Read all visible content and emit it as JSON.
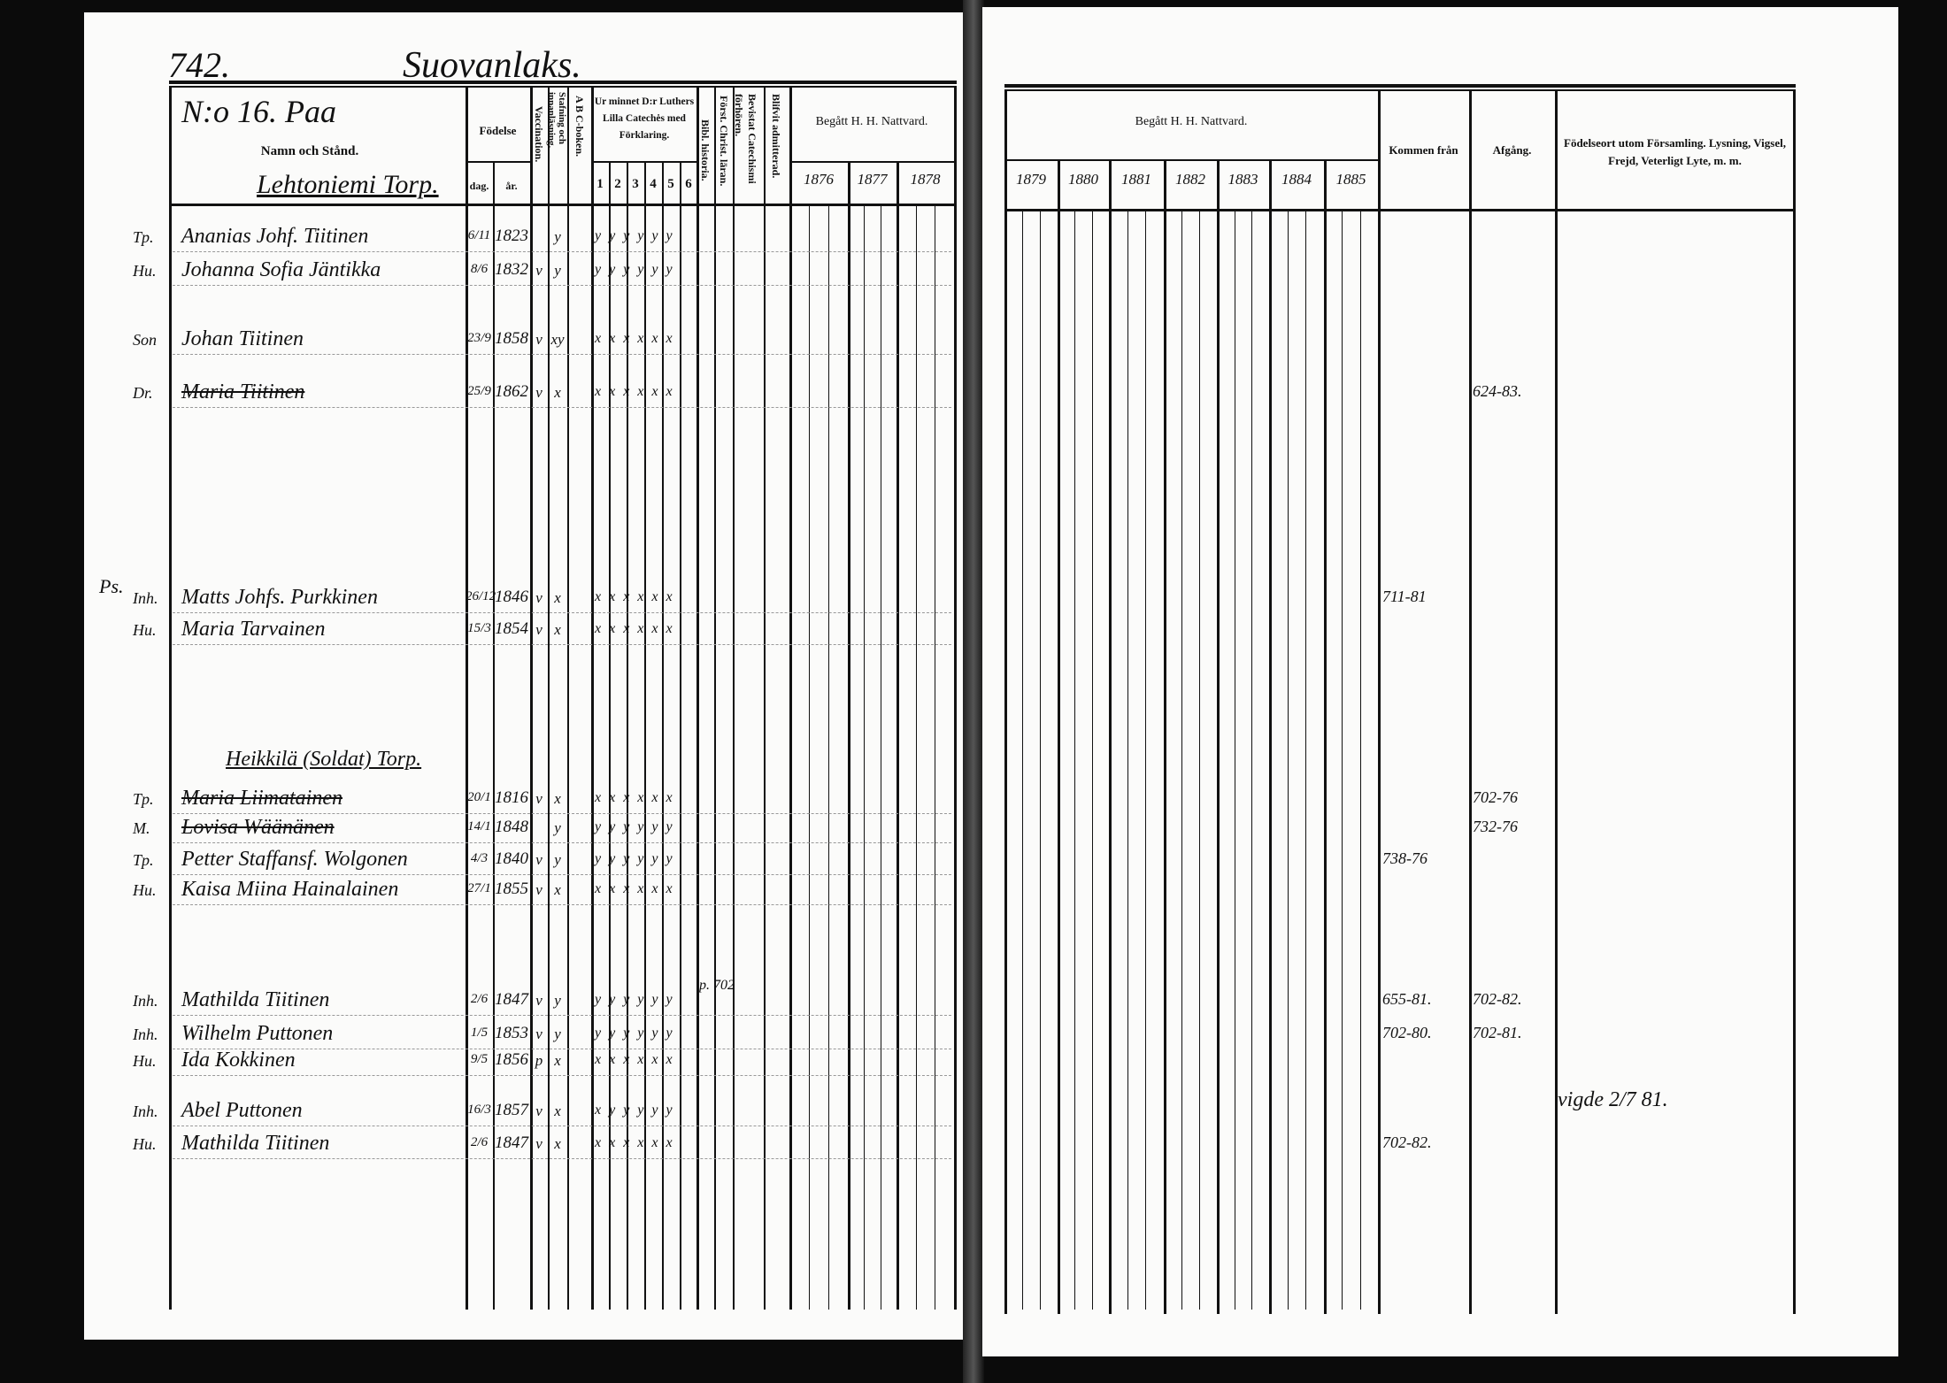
{
  "page_number": "742.",
  "village": "Suovanlaks.",
  "household": "N:o 16. Paa",
  "headers": {
    "name": "Namn och Stånd.",
    "birth": "Födelse",
    "birth_day": "dag.",
    "birth_year": "år.",
    "vaccination": "Vaccination.",
    "reading": "Stafning och innanläsning.",
    "abc": "A B C-boken.",
    "catechism": "Ur minnet D:r Luthers Lilla Catechės med Förklaring.",
    "catechism_parts": [
      "1",
      "2",
      "3",
      "4",
      "5",
      "6"
    ],
    "bible_history": "Bibl. historia.",
    "christian_doctrine": "Först. Christ. läran.",
    "catechism_exams": "Bevistat Catechismi förhören.",
    "admitted": "Blifvit admitterad.",
    "communion_left": "Begått H. H. Nattvard.",
    "communion_right": "Begått H. H. Nattvard.",
    "years_left": [
      "1876",
      "1877",
      "1878"
    ],
    "years_right": [
      "1879",
      "1880",
      "1881",
      "1882",
      "1883",
      "1884",
      "1885"
    ],
    "came_from": "Kommen från",
    "departure": "Afgång.",
    "remarks": "Födelseort utom Församling. Lysning, Vigsel, Frejd, Veterligt Lyte, m. m."
  },
  "sections": [
    "Lehtoniemi Torp.",
    "Heikkilä (Soldat) Torp."
  ],
  "margin_mark": "Ps.",
  "rows": [
    {
      "role": "Tp.",
      "name": "Ananias Johf. Tiitinen",
      "day": "6/11",
      "year": "1823",
      "vacc": "",
      "read": "y",
      "cat": "y y y y y y",
      "struck": false
    },
    {
      "role": "Hu.",
      "name": "Johanna Sofia Jäntikka",
      "day": "8/6",
      "year": "1832",
      "vacc": "v",
      "read": "y",
      "cat": "y y y y y y",
      "struck": false
    },
    {
      "role": "Son",
      "name": "Johan Tiitinen",
      "day": "23/9",
      "year": "1858",
      "vacc": "v",
      "read": "xy",
      "cat": "x x x x x x",
      "struck": false
    },
    {
      "role": "Dr.",
      "name": "Maria Tiitinen",
      "day": "25/9",
      "year": "1862",
      "vacc": "v",
      "read": "x",
      "cat": "x x x x x x",
      "struck": true,
      "departure": "624-83."
    },
    {
      "role": "Inh.",
      "name": "Matts Johfs. Purkkinen",
      "day": "26/12",
      "year": "1846",
      "vacc": "v",
      "read": "x",
      "cat": "x x x x x x",
      "struck": false,
      "came_from": "711-81"
    },
    {
      "role": "Hu.",
      "name": "Maria Tarvainen",
      "day": "15/3",
      "year": "1854",
      "vacc": "v",
      "read": "x",
      "cat": "x x x x x x",
      "struck": false
    },
    {
      "role": "Tp.",
      "name": "Maria Liimatainen",
      "day": "20/1",
      "year": "1816",
      "vacc": "v",
      "read": "x",
      "cat": "x x x x x x",
      "struck": true,
      "departure": "702-76"
    },
    {
      "role": "M.",
      "name": "Lovisa Wäänänen",
      "day": "14/1",
      "year": "1848",
      "vacc": "",
      "read": "y",
      "cat": "y y y y y y",
      "struck": true,
      "departure": "732-76"
    },
    {
      "role": "Tp.",
      "name": "Petter Staffansf. Wolgonen",
      "day": "4/3",
      "year": "1840",
      "vacc": "v",
      "read": "y",
      "cat": "y y y y y y",
      "struck": false,
      "came_from": "738-76"
    },
    {
      "role": "Hu.",
      "name": "Kaisa Miina Hainalainen",
      "day": "27/1",
      "year": "1855",
      "vacc": "v",
      "read": "x",
      "cat": "x x x x x x",
      "struck": false
    },
    {
      "role": "Inh.",
      "name": "Mathilda Tiitinen",
      "day": "2/6",
      "year": "1847",
      "vacc": "v",
      "read": "y",
      "cat": "y y y y y y",
      "struck": false,
      "note": "p. 702",
      "came_from": "655-81.",
      "departure": "702-82."
    },
    {
      "role": "Inh.",
      "name": "Wilhelm Puttonen",
      "day": "1/5",
      "year": "1853",
      "vacc": "v",
      "read": "y",
      "cat": "y y y y y y",
      "struck": false,
      "came_from": "702-80.",
      "departure": "702-81."
    },
    {
      "role": "Hu.",
      "name": "Ida Kokkinen",
      "day": "9/5",
      "year": "1856",
      "vacc": "p",
      "read": "x",
      "cat": "x x x x x x",
      "struck": false
    },
    {
      "role": "Inh.",
      "name": "Abel Puttonen",
      "day": "16/3",
      "year": "1857",
      "vacc": "v",
      "read": "x",
      "cat": "x y y y y y",
      "struck": false,
      "remark": "vigde 2/7 81."
    },
    {
      "role": "Hu.",
      "name": "Mathilda Tiitinen",
      "day": "2/6",
      "year": "1847",
      "vacc": "v",
      "read": "x",
      "cat": "x x x x x x",
      "struck": false,
      "came_from": "702-82."
    }
  ]
}
